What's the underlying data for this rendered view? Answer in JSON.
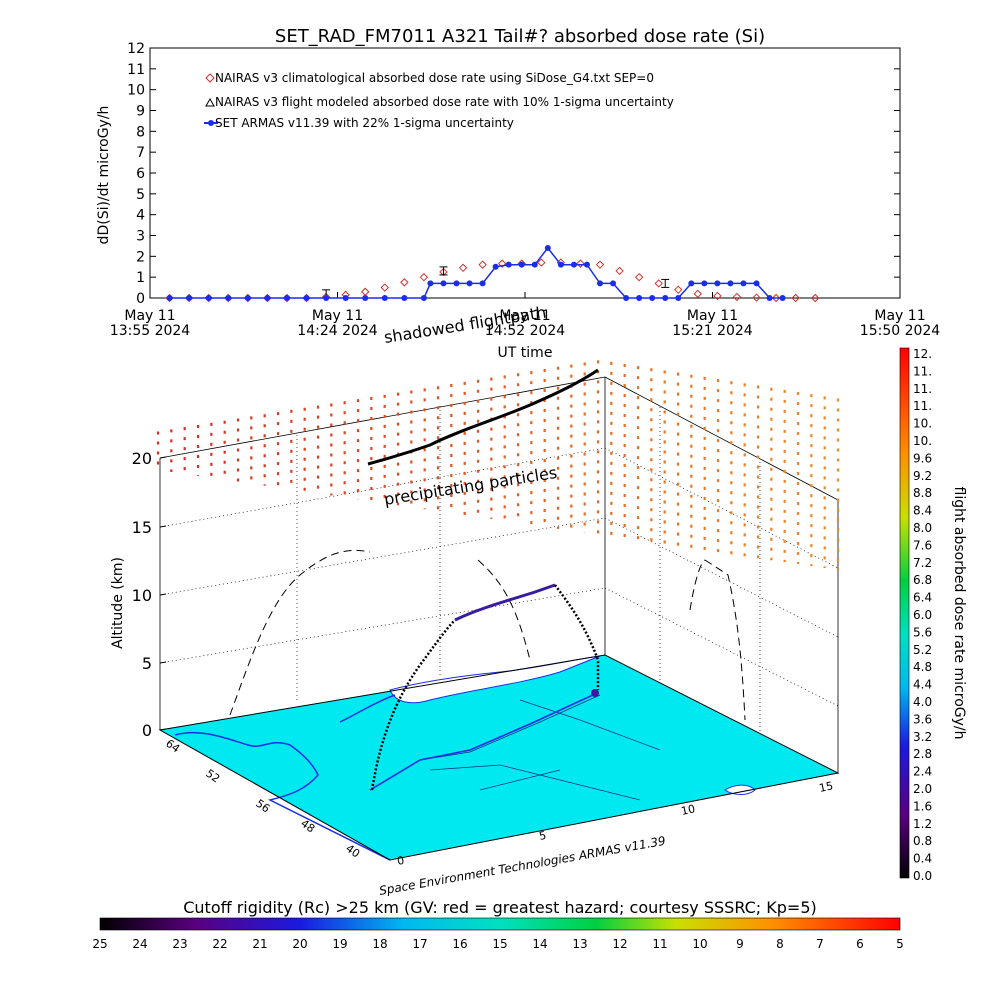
{
  "title": "SET_RAD_FM7011  A321 Tail#? absorbed dose rate (Si)",
  "colors": {
    "nairas_clim": "#d0302a",
    "armas": "#1a2ee8",
    "terrain": "#00e8f0",
    "flightpath": "#000000"
  },
  "chart_data": [
    {
      "type": "line",
      "title": "SET_RAD_FM7011  A321 Tail#? absorbed dose rate (Si)",
      "ylabel": "dD(Si)/dt microGy/h",
      "xlabel": "UT time",
      "ylim": [
        0,
        12
      ],
      "yticks": [
        "0",
        "1",
        "2",
        "3",
        "4",
        "5",
        "6",
        "7",
        "8",
        "9",
        "10",
        "11",
        "12"
      ],
      "xticks": [
        {
          "day": "May 11",
          "time": "13:55 2024"
        },
        {
          "day": "May 11",
          "time": "14:24 2024"
        },
        {
          "day": "May 11",
          "time": "14:52 2024"
        },
        {
          "day": "May 11",
          "time": "15:21 2024"
        },
        {
          "day": "May 11",
          "time": "15:50 2024"
        }
      ],
      "x_unit": "minutes since 13:55 UT",
      "legend": [
        "NAIRAS v3 climatological absorbed dose rate using SiDose_G4.txt SEP=0",
        "NAIRAS v3 flight modeled absorbed dose rate with 10% 1-sigma uncertainty",
        "SET ARMAS v11.39 with 22% 1-sigma uncertainty"
      ],
      "series": [
        {
          "name": "NAIRAS v3 climatological absorbed dose rate using SiDose_G4.txt SEP=0",
          "x": [
            3,
            6,
            9,
            12,
            15,
            18,
            21,
            24,
            27,
            30,
            33,
            36,
            39,
            42,
            45,
            48,
            51,
            54,
            57,
            60,
            63,
            66,
            69,
            72,
            75,
            78,
            81,
            84,
            87,
            90,
            93,
            96,
            99,
            102
          ],
          "values": [
            0,
            0,
            0,
            0,
            0,
            0,
            0,
            0,
            0.05,
            0.15,
            0.3,
            0.5,
            0.75,
            1.0,
            1.25,
            1.45,
            1.6,
            1.65,
            1.65,
            1.7,
            1.7,
            1.65,
            1.6,
            1.3,
            1.0,
            0.7,
            0.4,
            0.2,
            0.1,
            0.05,
            0.02,
            0,
            0,
            0
          ]
        },
        {
          "name": "NAIRAS v3 flight modeled absorbed dose rate with 10% 1-sigma uncertainty",
          "x": [
            27,
            45,
            79
          ],
          "values": [
            0.2,
            1.3,
            0.7
          ]
        },
        {
          "name": "SET ARMAS v11.39 with 22% 1-sigma uncertainty",
          "x": [
            3,
            6,
            9,
            12,
            15,
            18,
            21,
            24,
            27,
            30,
            33,
            36,
            39,
            42,
            43,
            45,
            47,
            49,
            51,
            53,
            55,
            57,
            59,
            61,
            63,
            65,
            67,
            69,
            71,
            73,
            75,
            77,
            79,
            81,
            83,
            85,
            87,
            89,
            91,
            93,
            95,
            97
          ],
          "values": [
            0,
            0,
            0,
            0,
            0,
            0,
            0,
            0,
            0,
            0,
            0,
            0,
            0,
            0,
            0.7,
            0.7,
            0.7,
            0.7,
            0.7,
            1.5,
            1.6,
            1.6,
            1.6,
            2.4,
            1.6,
            1.6,
            1.6,
            0.7,
            0.7,
            0,
            0,
            0,
            0,
            0,
            0.7,
            0.7,
            0.7,
            0.7,
            0.7,
            0.7,
            0,
            0
          ]
        }
      ]
    },
    {
      "type": "scatter",
      "zlabel": "Altitude (km)",
      "zticks": [
        "0",
        "5",
        "10",
        "15",
        "20"
      ],
      "lat_ticks": [
        "64",
        "52",
        "56",
        "48",
        "40"
      ],
      "lon_ticks": [
        "0",
        "5",
        "10",
        "15"
      ],
      "annotations": [
        "shadowed flightpath",
        "precipitating particles"
      ],
      "credit": "Space Environment Technologies ARMAS v11.39",
      "colorbar": {
        "label": "flight absorbed dose rate microGy/h",
        "ticks": [
          "0.0",
          "0.4",
          "0.8",
          "1.2",
          "1.6",
          "2.0",
          "2.4",
          "2.8",
          "3.2",
          "3.6",
          "4.0",
          "4.4",
          "4.8",
          "5.2",
          "5.6",
          "6.0",
          "6.4",
          "6.8",
          "7.2",
          "7.6",
          "8.0",
          "8.4",
          "8.8",
          "9.2",
          "9.6",
          "10.",
          "10.",
          "11.",
          "11.",
          "11.",
          "12."
        ]
      }
    },
    {
      "type": "heatmap",
      "title": "Cutoff rigidity (Rc) >25 km (GV: red = greatest hazard; courtesy SSSRC; Kp=5)",
      "ticks": [
        "25",
        "24",
        "23",
        "22",
        "21",
        "20",
        "19",
        "18",
        "17",
        "16",
        "15",
        "14",
        "13",
        "12",
        "11",
        "10",
        "9",
        "8",
        "7",
        "6",
        "5"
      ]
    }
  ]
}
